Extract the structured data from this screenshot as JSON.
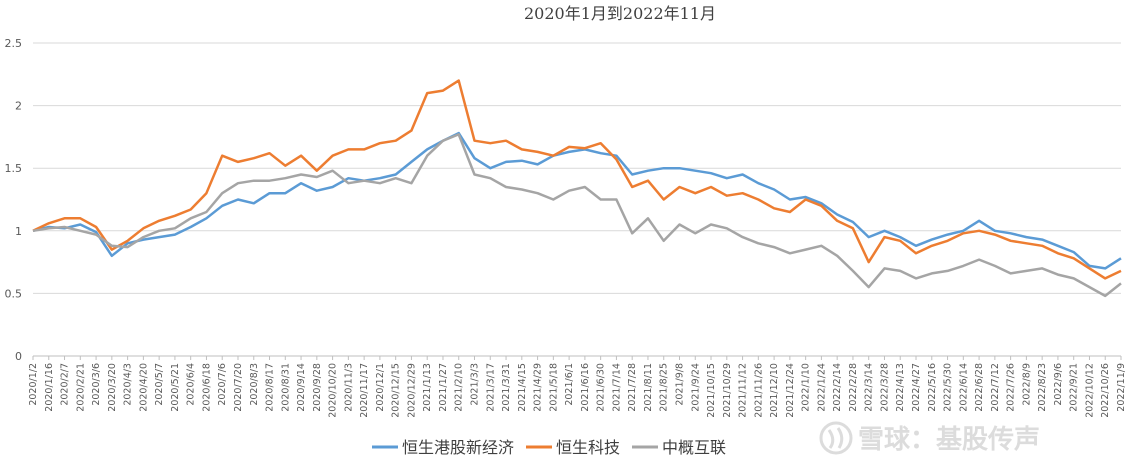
{
  "chart_data": {
    "type": "line",
    "title": "2020年1月到2022年11月",
    "xlabel": "",
    "ylabel": "",
    "ylim": [
      0,
      2.5
    ],
    "yticks": [
      "0",
      "0.5",
      "1",
      "1.5",
      "2",
      "2.5"
    ],
    "grid": true,
    "legend_position": "bottom",
    "x": [
      "2020/1/2",
      "2020/1/16",
      "2020/2/7",
      "2020/2/21",
      "2020/3/6",
      "2020/3/20",
      "2020/4/3",
      "2020/4/20",
      "2020/5/7",
      "2020/5/21",
      "2020/6/4",
      "2020/6/18",
      "2020/7/6",
      "2020/7/20",
      "2020/8/3",
      "2020/8/17",
      "2020/8/31",
      "2020/9/14",
      "2020/9/28",
      "2020/10/20",
      "2020/11/3",
      "2020/11/17",
      "2020/12/1",
      "2020/12/15",
      "2020/12/29",
      "2021/1/13",
      "2021/1/27",
      "2021/2/10",
      "2021/3/3",
      "2021/3/17",
      "2021/3/31",
      "2021/4/15",
      "2021/4/29",
      "2021/5/18",
      "2021/6/1",
      "2021/6/16",
      "2021/6/30",
      "2021/7/14",
      "2021/7/28",
      "2021/8/11",
      "2021/8/25",
      "2021/9/8",
      "2021/9/24",
      "2021/10/15",
      "2021/10/29",
      "2021/11/12",
      "2021/11/26",
      "2021/12/10",
      "2021/12/24",
      "2022/1/10",
      "2022/1/24",
      "2022/2/14",
      "2022/2/28",
      "2022/3/14",
      "2022/3/28",
      "2022/4/13",
      "2022/4/27",
      "2022/5/16",
      "2022/5/30",
      "2022/6/14",
      "2022/6/28",
      "2022/7/12",
      "2022/7/26",
      "2022/8/9",
      "2022/8/23",
      "2022/9/6",
      "2022/9/21",
      "2022/10/12",
      "2022/10/26",
      "2022/11/9"
    ],
    "series": [
      {
        "name": "恒生港股新经济",
        "color": "#5b9bd5",
        "values": [
          1.0,
          1.03,
          1.02,
          1.05,
          0.99,
          0.8,
          0.9,
          0.93,
          0.95,
          0.97,
          1.03,
          1.1,
          1.2,
          1.25,
          1.22,
          1.3,
          1.3,
          1.38,
          1.32,
          1.35,
          1.42,
          1.4,
          1.42,
          1.45,
          1.55,
          1.65,
          1.72,
          1.78,
          1.58,
          1.5,
          1.55,
          1.56,
          1.53,
          1.6,
          1.63,
          1.65,
          1.62,
          1.6,
          1.45,
          1.48,
          1.5,
          1.5,
          1.48,
          1.46,
          1.42,
          1.45,
          1.38,
          1.33,
          1.25,
          1.27,
          1.22,
          1.13,
          1.07,
          0.95,
          1.0,
          0.95,
          0.88,
          0.93,
          0.97,
          1.0,
          1.08,
          1.0,
          0.98,
          0.95,
          0.93,
          0.88,
          0.83,
          0.72,
          0.7,
          0.78
        ]
      },
      {
        "name": "恒生科技",
        "color": "#ed7d31",
        "values": [
          1.0,
          1.06,
          1.1,
          1.1,
          1.03,
          0.85,
          0.92,
          1.02,
          1.08,
          1.12,
          1.17,
          1.3,
          1.6,
          1.55,
          1.58,
          1.62,
          1.52,
          1.6,
          1.48,
          1.6,
          1.65,
          1.65,
          1.7,
          1.72,
          1.8,
          2.1,
          2.12,
          2.2,
          1.72,
          1.7,
          1.72,
          1.65,
          1.63,
          1.6,
          1.67,
          1.66,
          1.7,
          1.57,
          1.35,
          1.4,
          1.25,
          1.35,
          1.3,
          1.35,
          1.28,
          1.3,
          1.25,
          1.18,
          1.15,
          1.25,
          1.2,
          1.08,
          1.02,
          0.75,
          0.95,
          0.92,
          0.82,
          0.88,
          0.92,
          0.98,
          1.0,
          0.97,
          0.92,
          0.9,
          0.88,
          0.82,
          0.78,
          0.7,
          0.62,
          0.68
        ]
      },
      {
        "name": "中概互联",
        "color": "#a5a5a5",
        "values": [
          1.0,
          1.02,
          1.03,
          1.0,
          0.97,
          0.88,
          0.87,
          0.95,
          1.0,
          1.02,
          1.1,
          1.15,
          1.3,
          1.38,
          1.4,
          1.4,
          1.42,
          1.45,
          1.43,
          1.48,
          1.38,
          1.4,
          1.38,
          1.42,
          1.38,
          1.6,
          1.72,
          1.77,
          1.45,
          1.42,
          1.35,
          1.33,
          1.3,
          1.25,
          1.32,
          1.35,
          1.25,
          1.25,
          0.98,
          1.1,
          0.92,
          1.05,
          0.98,
          1.05,
          1.02,
          0.95,
          0.9,
          0.87,
          0.82,
          0.85,
          0.88,
          0.8,
          0.68,
          0.55,
          0.7,
          0.68,
          0.62,
          0.66,
          0.68,
          0.72,
          0.77,
          0.72,
          0.66,
          0.68,
          0.7,
          0.65,
          0.62,
          0.55,
          0.48,
          0.58
        ]
      }
    ]
  },
  "watermark": {
    "text": "雪球：基股传声",
    "icon": "snowball-logo-icon"
  }
}
